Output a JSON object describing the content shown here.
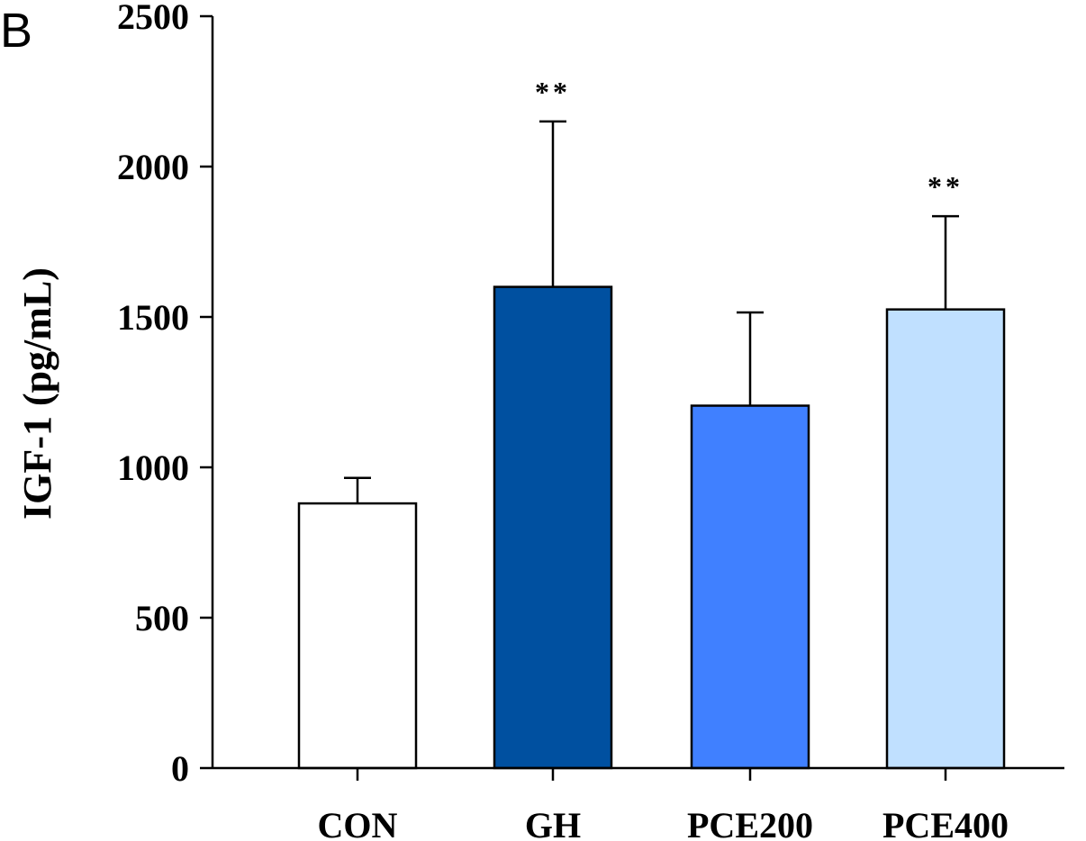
{
  "panel_label": "B",
  "chart_data": {
    "type": "bar",
    "title": "",
    "xlabel": "",
    "ylabel": "IGF-1 (pg/mL)",
    "ylim": [
      0,
      2500
    ],
    "yticks": [
      0,
      500,
      1000,
      1500,
      2000,
      2500
    ],
    "categories": [
      "CON",
      "GH",
      "PCE200",
      "PCE400"
    ],
    "values": [
      880,
      1600,
      1205,
      1525
    ],
    "errors": [
      85,
      550,
      310,
      310
    ],
    "significance": [
      "",
      "**",
      "",
      "**"
    ],
    "colors": [
      "#ffffff",
      "#0050a0",
      "#4080ff",
      "#c0e0ff"
    ],
    "grid": false,
    "legend": "none"
  }
}
